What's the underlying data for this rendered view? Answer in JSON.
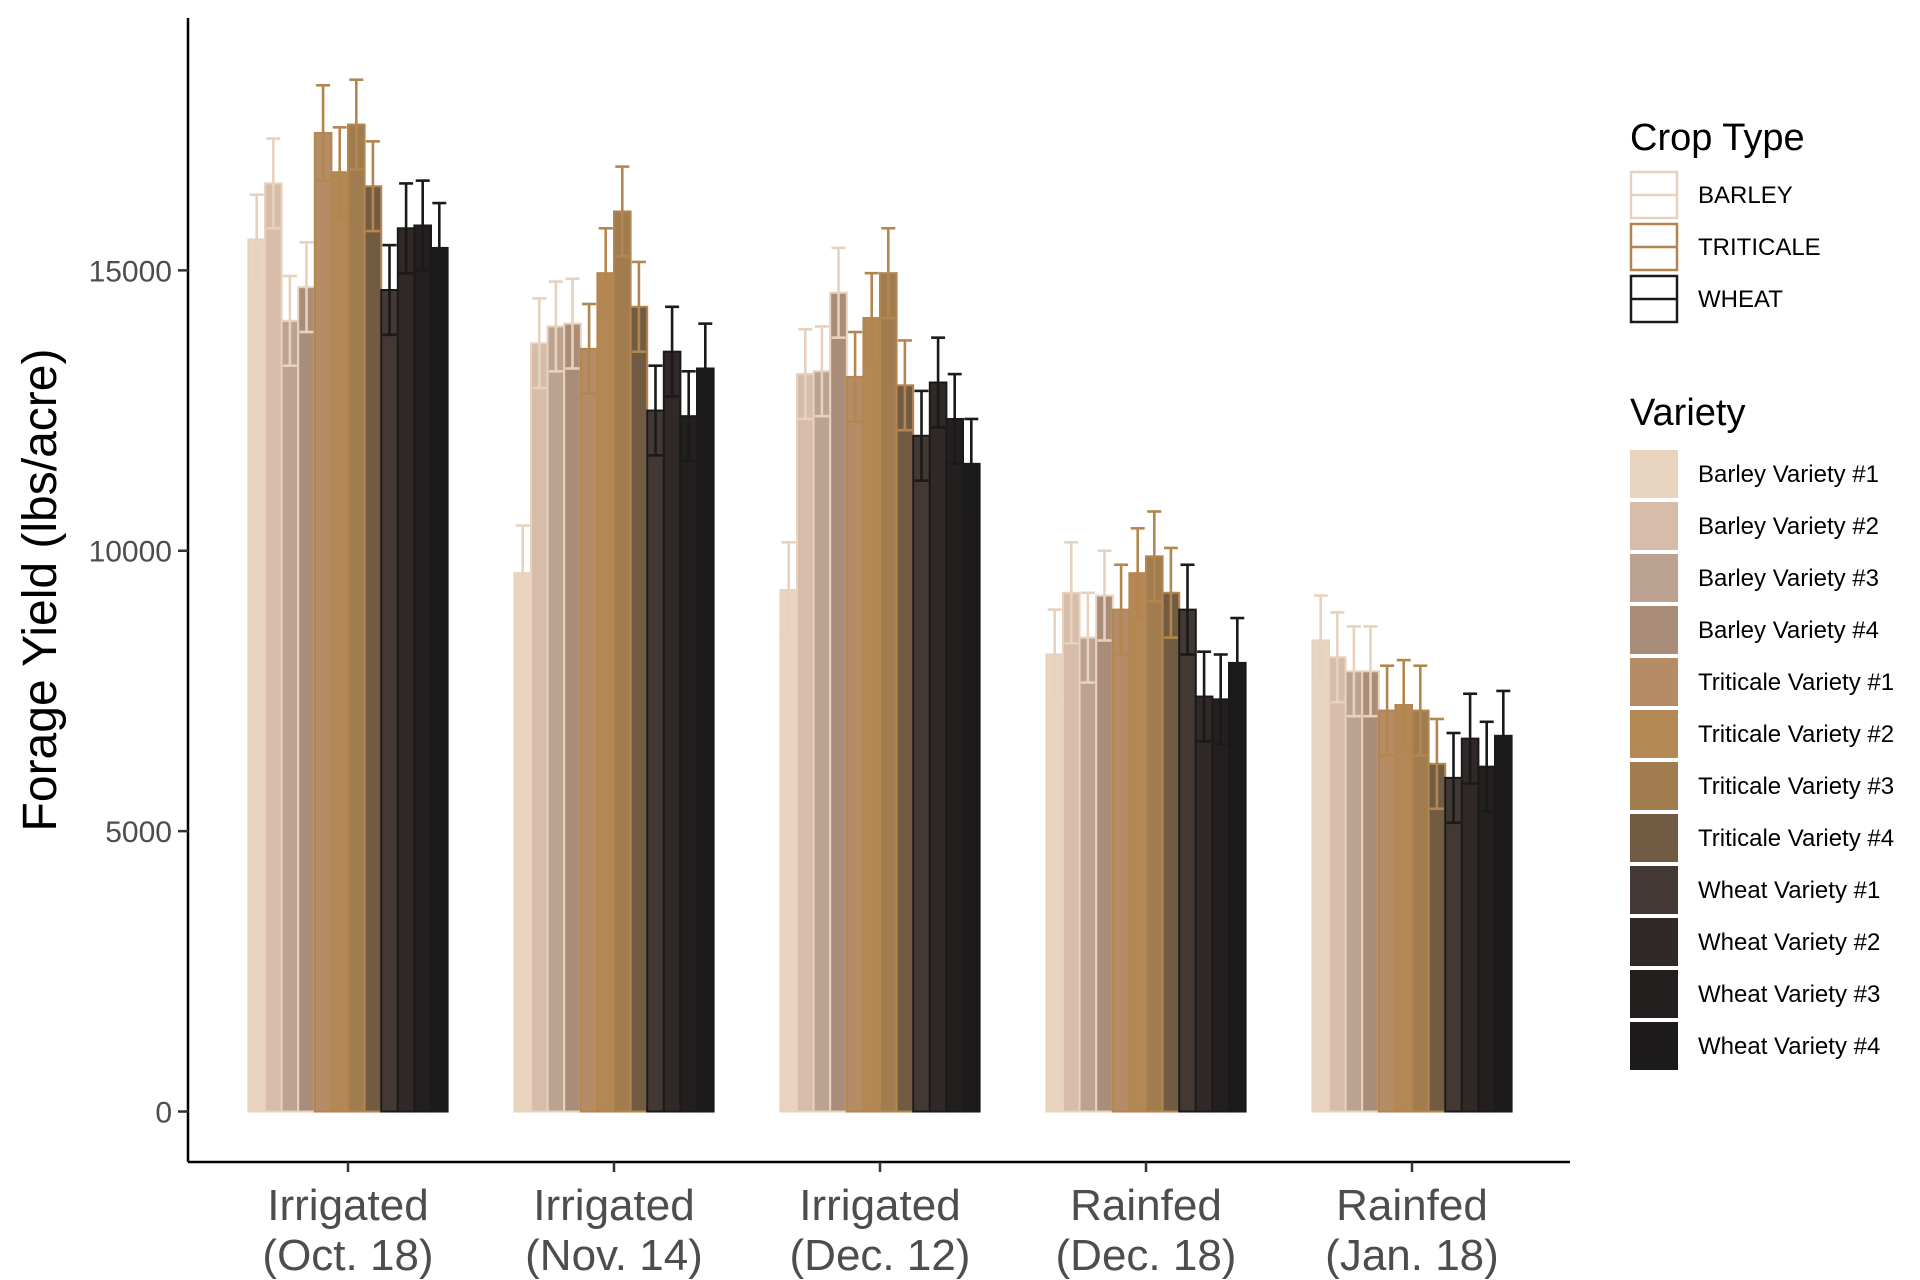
{
  "chart_data": {
    "type": "bar",
    "title": "",
    "xlabel": "",
    "ylabel": "Forage Yield (lbs/acre)",
    "ylim": [
      -900,
      19500
    ],
    "yticks": [
      0,
      5000,
      10000,
      15000
    ],
    "grid": false,
    "legend_position": "right",
    "categories": [
      [
        "Irrigated",
        "(Oct. 18)"
      ],
      [
        "Irrigated",
        "(Nov. 14)"
      ],
      [
        "Irrigated",
        "(Dec. 12)"
      ],
      [
        "Rainfed",
        "(Dec. 18)"
      ],
      [
        "Rainfed",
        "(Jan. 18)"
      ]
    ],
    "crop_type_legend": {
      "title": "Crop Type",
      "entries": [
        {
          "label": "BARLEY",
          "color": "#e6d2bd"
        },
        {
          "label": "TRITICALE",
          "color": "#b3864f"
        },
        {
          "label": "WHEAT",
          "color": "#1a1a1a"
        }
      ]
    },
    "variety_legend_title": "Variety",
    "series": [
      {
        "name": "Barley Variety #1",
        "crop": "BARLEY",
        "fill": "#e9d4bf",
        "values": [
          15550,
          9600,
          9300,
          8150,
          8400
        ],
        "errors": [
          800,
          850,
          850,
          800,
          800
        ]
      },
      {
        "name": "Barley Variety #2",
        "crop": "BARLEY",
        "fill": "#d6bca9",
        "values": [
          16550,
          13700,
          13150,
          9250,
          8100
        ],
        "errors": [
          800,
          800,
          800,
          900,
          800
        ]
      },
      {
        "name": "Barley Variety #3",
        "crop": "BARLEY",
        "fill": "#bca391",
        "values": [
          14100,
          14000,
          13200,
          8450,
          7850
        ],
        "errors": [
          800,
          800,
          800,
          800,
          800
        ]
      },
      {
        "name": "Barley Variety #4",
        "crop": "BARLEY",
        "fill": "#aa8d79",
        "values": [
          14700,
          14050,
          14600,
          9200,
          7850
        ],
        "errors": [
          800,
          800,
          800,
          800,
          800
        ]
      },
      {
        "name": "Triticale Variety #1",
        "crop": "TRITICALE",
        "fill": "#b58c65",
        "values": [
          17450,
          13600,
          13100,
          8950,
          7150
        ],
        "errors": [
          850,
          800,
          800,
          800,
          800
        ]
      },
      {
        "name": "Triticale Variety #2",
        "crop": "TRITICALE",
        "fill": "#b38855",
        "values": [
          16750,
          14950,
          14150,
          9600,
          7250
        ],
        "errors": [
          800,
          800,
          800,
          800,
          800
        ]
      },
      {
        "name": "Triticale Variety #3",
        "crop": "TRITICALE",
        "fill": "#a17c4f",
        "values": [
          17600,
          16050,
          14950,
          9900,
          7150
        ],
        "errors": [
          800,
          800,
          800,
          800,
          800
        ]
      },
      {
        "name": "Triticale Variety #4",
        "crop": "TRITICALE",
        "fill": "#715b43",
        "values": [
          16500,
          14350,
          12950,
          9250,
          6200
        ],
        "errors": [
          800,
          800,
          800,
          800,
          800
        ]
      },
      {
        "name": "Wheat Variety #1",
        "crop": "WHEAT",
        "fill": "#433833",
        "values": [
          14650,
          12500,
          12050,
          8950,
          5950
        ],
        "errors": [
          800,
          800,
          800,
          800,
          800
        ]
      },
      {
        "name": "Wheat Variety #2",
        "crop": "WHEAT",
        "fill": "#302927",
        "values": [
          15750,
          13550,
          13000,
          7400,
          6650
        ],
        "errors": [
          800,
          800,
          800,
          800,
          800
        ]
      },
      {
        "name": "Wheat Variety #3",
        "crop": "WHEAT",
        "fill": "#231f1f",
        "values": [
          15800,
          12400,
          12350,
          7350,
          6150
        ],
        "errors": [
          800,
          800,
          800,
          800,
          800
        ]
      },
      {
        "name": "Wheat Variety #4",
        "crop": "WHEAT",
        "fill": "#1c1a1b",
        "values": [
          15400,
          13250,
          11550,
          8000,
          6700
        ],
        "errors": [
          800,
          800,
          800,
          800,
          800
        ]
      }
    ]
  }
}
